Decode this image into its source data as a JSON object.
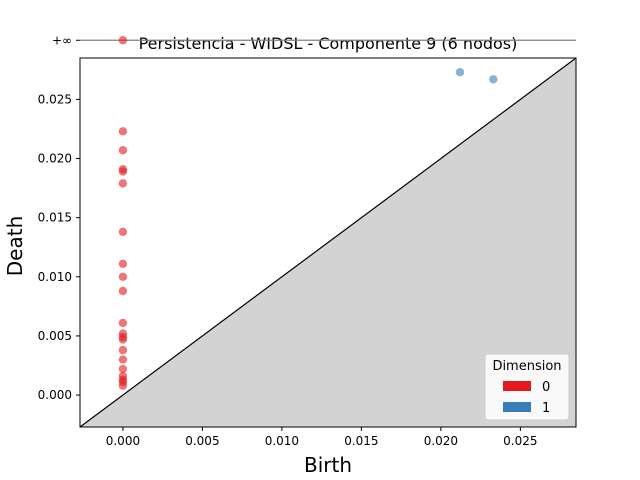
{
  "chart_data": {
    "type": "scatter",
    "title": "Persistencia - WIDSL - Componente 9 (6 nodos)",
    "xlabel": "Birth",
    "ylabel": "Death",
    "xlim": [
      -0.0027,
      0.0285
    ],
    "ylim": [
      -0.0027,
      0.0285
    ],
    "x_ticks": [
      0.0,
      0.005,
      0.01,
      0.015,
      0.02,
      0.025
    ],
    "x_tick_labels": [
      "0.000",
      "0.005",
      "0.010",
      "0.015",
      "0.020",
      "0.025"
    ],
    "y_ticks": [
      0.0,
      0.005,
      0.01,
      0.015,
      0.02,
      0.025
    ],
    "y_tick_labels": [
      "0.000",
      "0.005",
      "0.010",
      "0.015",
      "0.020",
      "0.025"
    ],
    "infinity_label": "+∞",
    "infinity_value": 0.03,
    "grid": false,
    "legend": {
      "title": "Dimension",
      "placement": "bottom-right",
      "entries": [
        {
          "label": "0",
          "color": "#e41a1c"
        },
        {
          "label": "1",
          "color": "#377eb8"
        }
      ]
    },
    "series": [
      {
        "name": "0",
        "color": "#e41a1c",
        "points": [
          [
            0.0,
            "inf"
          ],
          [
            0.0,
            0.0223
          ],
          [
            0.0,
            0.0207
          ],
          [
            0.0,
            0.0191
          ],
          [
            0.0,
            0.0189
          ],
          [
            0.0,
            0.0179
          ],
          [
            0.0,
            0.0138
          ],
          [
            0.0,
            0.0111
          ],
          [
            0.0,
            0.01
          ],
          [
            0.0,
            0.0088
          ],
          [
            0.0,
            0.0061
          ],
          [
            0.0,
            0.0052
          ],
          [
            0.0,
            0.0049
          ],
          [
            0.0,
            0.0047
          ],
          [
            0.0,
            0.0038
          ],
          [
            0.0,
            0.003
          ],
          [
            0.0,
            0.0022
          ],
          [
            0.0,
            0.0016
          ],
          [
            0.0,
            0.0013
          ],
          [
            0.0,
            0.0011
          ],
          [
            0.0,
            0.0008
          ]
        ]
      },
      {
        "name": "1",
        "color": "#377eb8",
        "points": [
          [
            0.0212,
            0.0273
          ],
          [
            0.0233,
            0.0267
          ]
        ]
      }
    ]
  }
}
